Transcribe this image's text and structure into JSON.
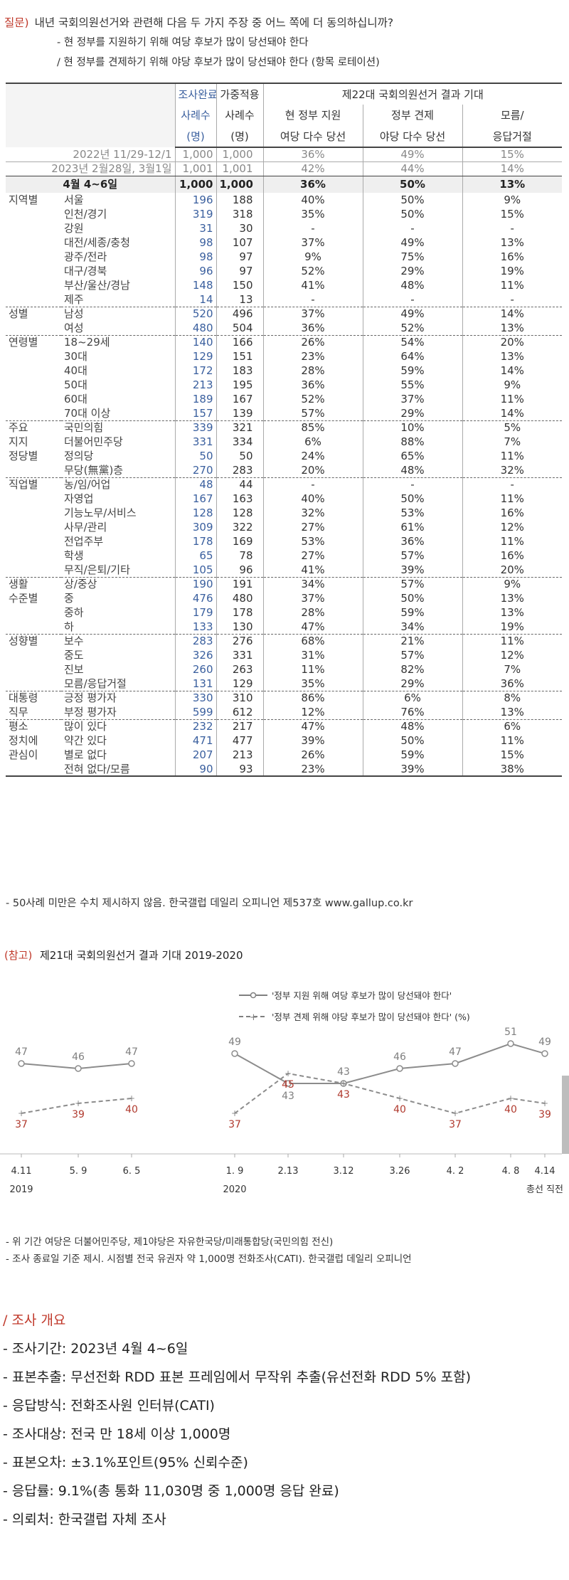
{
  "question": {
    "label": "질문)",
    "text": "내년 국회의원선거와 관련해 다음 두 가지 주장 중 어느 쪽에 더 동의하십니까?",
    "option_1": "- 현 정부를 지원하기 위해 여당 후보가 많이 당선돼야 한다",
    "option_2": "/ 현 정부를 견제하기 위해 야당 후보가 많이 당선돼야 한다 (항목 로테이션)"
  },
  "table": {
    "headers": {
      "col_completed": [
        "조사완료",
        "사례수",
        "(명)"
      ],
      "col_weighted": [
        "가중적용",
        "사례수",
        "(명)"
      ],
      "group_title": "제22대 국회의원선거 결과 기대",
      "col_gov_support": [
        "현 정부 지원",
        "여당 다수 당선"
      ],
      "col_gov_check": [
        "정부 견제",
        "야당 다수 당선"
      ],
      "col_dk": [
        "모름/",
        "응답거절"
      ]
    },
    "previous": [
      {
        "label": "2022년 11/29-12/1",
        "n1": "1,000",
        "n2": "1,000",
        "a": "36%",
        "b": "49%",
        "c": "15%"
      },
      {
        "label": "2023년 2월28일, 3월1일",
        "n1": "1,001",
        "n2": "1,001",
        "a": "42%",
        "b": "44%",
        "c": "14%"
      }
    ],
    "current": {
      "label": "4월 4~6일",
      "n1": "1,000",
      "n2": "1,000",
      "a": "36%",
      "b": "50%",
      "c": "13%"
    },
    "groups": [
      {
        "name": "지역별",
        "rows": [
          {
            "sub": "서울",
            "n1": "196",
            "n2": "188",
            "a": "40%",
            "b": "50%",
            "c": "9%"
          },
          {
            "sub": "인천/경기",
            "n1": "319",
            "n2": "318",
            "a": "35%",
            "b": "50%",
            "c": "15%"
          },
          {
            "sub": "강원",
            "n1": "31",
            "n2": "30",
            "a": "-",
            "b": "-",
            "c": "-"
          },
          {
            "sub": "대전/세종/충청",
            "n1": "98",
            "n2": "107",
            "a": "37%",
            "b": "49%",
            "c": "13%"
          },
          {
            "sub": "광주/전라",
            "n1": "98",
            "n2": "97",
            "a": "9%",
            "b": "75%",
            "c": "16%"
          },
          {
            "sub": "대구/경북",
            "n1": "96",
            "n2": "97",
            "a": "52%",
            "b": "29%",
            "c": "19%"
          },
          {
            "sub": "부산/울산/경남",
            "n1": "148",
            "n2": "150",
            "a": "41%",
            "b": "48%",
            "c": "11%"
          },
          {
            "sub": "제주",
            "n1": "14",
            "n2": "13",
            "a": "-",
            "b": "-",
            "c": "-"
          }
        ]
      },
      {
        "name": "성별",
        "rows": [
          {
            "sub": "남성",
            "n1": "520",
            "n2": "496",
            "a": "37%",
            "b": "49%",
            "c": "14%"
          },
          {
            "sub": "여성",
            "n1": "480",
            "n2": "504",
            "a": "36%",
            "b": "52%",
            "c": "13%"
          }
        ]
      },
      {
        "name": "연령별",
        "rows": [
          {
            "sub": "18~29세",
            "n1": "140",
            "n2": "166",
            "a": "26%",
            "b": "54%",
            "c": "20%"
          },
          {
            "sub": "30대",
            "n1": "129",
            "n2": "151",
            "a": "23%",
            "b": "64%",
            "c": "13%"
          },
          {
            "sub": "40대",
            "n1": "172",
            "n2": "183",
            "a": "28%",
            "b": "59%",
            "c": "14%"
          },
          {
            "sub": "50대",
            "n1": "213",
            "n2": "195",
            "a": "36%",
            "b": "55%",
            "c": "9%"
          },
          {
            "sub": "60대",
            "n1": "189",
            "n2": "167",
            "a": "52%",
            "b": "37%",
            "c": "11%"
          },
          {
            "sub": "70대 이상",
            "n1": "157",
            "n2": "139",
            "a": "57%",
            "b": "29%",
            "c": "14%"
          }
        ]
      },
      {
        "name": "주요 지지 정당별",
        "labels": [
          "주요",
          "지지",
          "정당별"
        ],
        "rows": [
          {
            "sub": "국민의힘",
            "n1": "339",
            "n2": "321",
            "a": "85%",
            "b": "10%",
            "c": "5%"
          },
          {
            "sub": "더불어민주당",
            "n1": "331",
            "n2": "334",
            "a": "6%",
            "b": "88%",
            "c": "7%"
          },
          {
            "sub": "정의당",
            "n1": "50",
            "n2": "50",
            "a": "24%",
            "b": "65%",
            "c": "11%"
          },
          {
            "sub": "무당(無黨)층",
            "n1": "270",
            "n2": "283",
            "a": "20%",
            "b": "48%",
            "c": "32%"
          }
        ]
      },
      {
        "name": "직업별",
        "rows": [
          {
            "sub": "농/임/어업",
            "n1": "48",
            "n2": "44",
            "a": "-",
            "b": "-",
            "c": "-"
          },
          {
            "sub": "자영업",
            "n1": "167",
            "n2": "163",
            "a": "40%",
            "b": "50%",
            "c": "11%"
          },
          {
            "sub": "기능노무/서비스",
            "n1": "128",
            "n2": "128",
            "a": "32%",
            "b": "53%",
            "c": "16%"
          },
          {
            "sub": "사무/관리",
            "n1": "309",
            "n2": "322",
            "a": "27%",
            "b": "61%",
            "c": "12%"
          },
          {
            "sub": "전업주부",
            "n1": "178",
            "n2": "169",
            "a": "53%",
            "b": "36%",
            "c": "11%"
          },
          {
            "sub": "학생",
            "n1": "65",
            "n2": "78",
            "a": "27%",
            "b": "57%",
            "c": "16%"
          },
          {
            "sub": "무직/은퇴/기타",
            "n1": "105",
            "n2": "96",
            "a": "41%",
            "b": "39%",
            "c": "20%"
          }
        ]
      },
      {
        "name": "생활 수준별",
        "labels": [
          "생활",
          "수준별"
        ],
        "rows": [
          {
            "sub": "상/중상",
            "n1": "190",
            "n2": "191",
            "a": "34%",
            "b": "57%",
            "c": "9%"
          },
          {
            "sub": "중",
            "n1": "476",
            "n2": "480",
            "a": "37%",
            "b": "50%",
            "c": "13%"
          },
          {
            "sub": "중하",
            "n1": "179",
            "n2": "178",
            "a": "28%",
            "b": "59%",
            "c": "13%"
          },
          {
            "sub": "하",
            "n1": "133",
            "n2": "130",
            "a": "47%",
            "b": "34%",
            "c": "19%"
          }
        ]
      },
      {
        "name": "성향별",
        "rows": [
          {
            "sub": "보수",
            "n1": "283",
            "n2": "276",
            "a": "68%",
            "b": "21%",
            "c": "11%"
          },
          {
            "sub": "중도",
            "n1": "326",
            "n2": "331",
            "a": "31%",
            "b": "57%",
            "c": "12%"
          },
          {
            "sub": "진보",
            "n1": "260",
            "n2": "263",
            "a": "11%",
            "b": "82%",
            "c": "7%"
          },
          {
            "sub": "모름/응답거절",
            "n1": "131",
            "n2": "129",
            "a": "35%",
            "b": "29%",
            "c": "36%"
          }
        ]
      },
      {
        "name": "대통령 직무",
        "labels": [
          "대통령",
          "직무"
        ],
        "rows": [
          {
            "sub": "긍정 평가자",
            "n1": "330",
            "n2": "310",
            "a": "86%",
            "b": "6%",
            "c": "8%"
          },
          {
            "sub": "부정 평가자",
            "n1": "599",
            "n2": "612",
            "a": "12%",
            "b": "76%",
            "c": "13%"
          }
        ]
      },
      {
        "name": "평소 정치에 관심이",
        "labels": [
          "평소",
          "정치에",
          "관심이"
        ],
        "rows": [
          {
            "sub": "많이 있다",
            "n1": "232",
            "n2": "217",
            "a": "47%",
            "b": "48%",
            "c": "6%"
          },
          {
            "sub": "약간 있다",
            "n1": "471",
            "n2": "477",
            "a": "39%",
            "b": "50%",
            "c": "11%"
          },
          {
            "sub": "별로 없다",
            "n1": "207",
            "n2": "213",
            "a": "26%",
            "b": "59%",
            "c": "15%"
          },
          {
            "sub": "전혀 없다/모름",
            "n1": "90",
            "n2": "93",
            "a": "23%",
            "b": "39%",
            "c": "38%"
          }
        ]
      }
    ],
    "note": "- 50사례 미만은 수치 제시하지 않음. 한국갤럽 데일리 오피니언 제537호 www.gallup.co.kr"
  },
  "chart_data": {
    "type": "line",
    "title_prefix": "(참고)",
    "title": "제21대 국회의원선거 결과 기대 2019-2020",
    "x": [
      "4.11",
      "5. 9",
      "6. 5",
      "1. 9",
      "2.13",
      "3.12",
      "3.26",
      "4. 2",
      "4. 8",
      "4.14"
    ],
    "year_labels": [
      {
        "at": "4.11",
        "text": "2019"
      },
      {
        "at": "1. 9",
        "text": "2020"
      }
    ],
    "x_extra_label": "총선 직전",
    "segments": [
      [
        0,
        2
      ],
      [
        3,
        9
      ]
    ],
    "series": [
      {
        "name": "'정부 지원 위해 여당 후보가 많이 당선돼야 한다'",
        "values": [
          47,
          46,
          47,
          49,
          43,
          43,
          46,
          47,
          51,
          49
        ],
        "color": "#7f7f7f",
        "style": "solid"
      },
      {
        "name": "'정부 견제 위해 야당 후보가 많이 당선돼야 한다' (%)",
        "values": [
          37,
          39,
          40,
          37,
          45,
          43,
          40,
          37,
          40,
          39
        ],
        "color": "#b03a2e",
        "style": "dashed"
      }
    ],
    "ylim": [
      30,
      60
    ]
  },
  "chart_notes": [
    "- 위 기간 여당은 더불어민주당, 제1야당은 자유한국당/미래통합당(국민의힘 전신)",
    "- 조사 종료일 기준 제시. 시점별 전국 유권자 약 1,000명 전화조사(CATI). 한국갤럽 데일리 오피니언"
  ],
  "survey": {
    "title": "/ 조사 개요",
    "items": [
      "- 조사기간: 2023년 4월 4~6일",
      "- 표본추출: 무선전화 RDD 표본 프레임에서 무작위 추출(유선전화 RDD 5% 포함)",
      "- 응답방식: 전화조사원 인터뷰(CATI)",
      "- 조사대상: 전국 만 18세 이상 1,000명",
      "- 표본오차: ±3.1%포인트(95% 신뢰수준)",
      "- 응답률: 9.1%(총 통화 11,030명 중 1,000명 응답 완료)",
      "- 의뢰처: 한국갤럽 자체 조사"
    ]
  }
}
